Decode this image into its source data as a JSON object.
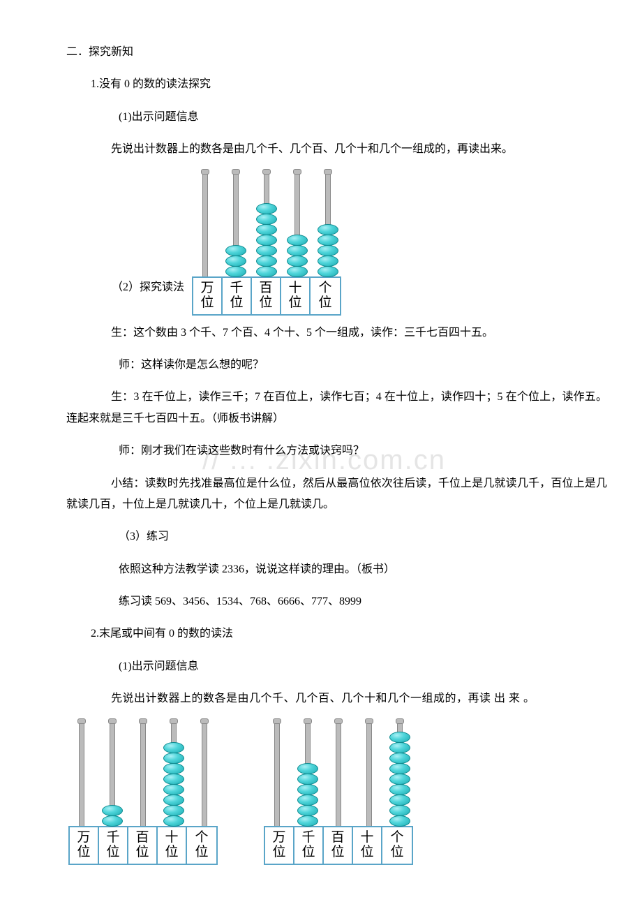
{
  "section": {
    "heading": "二．探究新知",
    "item1": {
      "title": "1.没有 0 的数的读法探究",
      "step1_label": "(1)出示问题信息",
      "step1_text": "先说出计数器上的数各是由几个千、几个百、几个十和几个一组成的，再读出来。",
      "step2_label": "（2）探究读法",
      "dialog1": "生：这个数由 3 个千、7 个百、4 个十、5 个一组成，读作：三千七百四十五。",
      "dialog2": "师：这样读你是怎么想的呢？",
      "dialog3": "生：3 在千位上，读作三千；7 在百位上，读作七百；4 在十位上，读作四十；5 在个位上，读作五。连起来就是三千七百四十五。（师板书讲解）",
      "dialog4": "师：刚才我们在读这些数时有什么方法或诀窍吗？",
      "summary": "小结：读数时先找准最高位是什么位，然后从最高位依次往后读，千位上是几就读几千，百位上是几就读几百，十位上是几就读几十，个位上是几就读几。",
      "step3_label": "（3）练习",
      "practice1": "依照这种方法教学读 2336，说说这样读的理由。（板书）",
      "practice2": "练习读 569、3456、1534、768、6666、777、8999"
    },
    "item2": {
      "title": "2.末尾或中间有 0 的数的读法",
      "step1_label": "(1)出示问题信息",
      "step1_text": "先说出计数器上的数各是由几个千、几个百、几个十和几个一组成的，再读 出 来 。"
    }
  },
  "watermark_text": "// ... .zixin.com.cn",
  "abacus_labels": [
    "万位",
    "千位",
    "百位",
    "十位",
    "个位"
  ],
  "abacus1": {
    "bead_color_gradient": [
      "#a8f0f5",
      "#4fd5da",
      "#1aaab0"
    ],
    "bead_border": "#0e8a8f",
    "frame_border": "#5aa5c8",
    "rod_color": "#bbbbbb",
    "rods": [
      {
        "label": "万位",
        "beads": 0
      },
      {
        "label": "千位",
        "beads": 3
      },
      {
        "label": "百位",
        "beads": 7
      },
      {
        "label": "十位",
        "beads": 4
      },
      {
        "label": "个位",
        "beads": 5
      }
    ]
  },
  "abacus2": {
    "rods": [
      {
        "label": "万位",
        "beads": 0
      },
      {
        "label": "千位",
        "beads": 2
      },
      {
        "label": "百位",
        "beads": 0
      },
      {
        "label": "十位",
        "beads": 8
      },
      {
        "label": "个位",
        "beads": 0
      }
    ]
  },
  "abacus3": {
    "rods": [
      {
        "label": "万位",
        "beads": 0
      },
      {
        "label": "千位",
        "beads": 6
      },
      {
        "label": "百位",
        "beads": 0
      },
      {
        "label": "十位",
        "beads": 0
      },
      {
        "label": "个位",
        "beads": 9
      }
    ]
  }
}
